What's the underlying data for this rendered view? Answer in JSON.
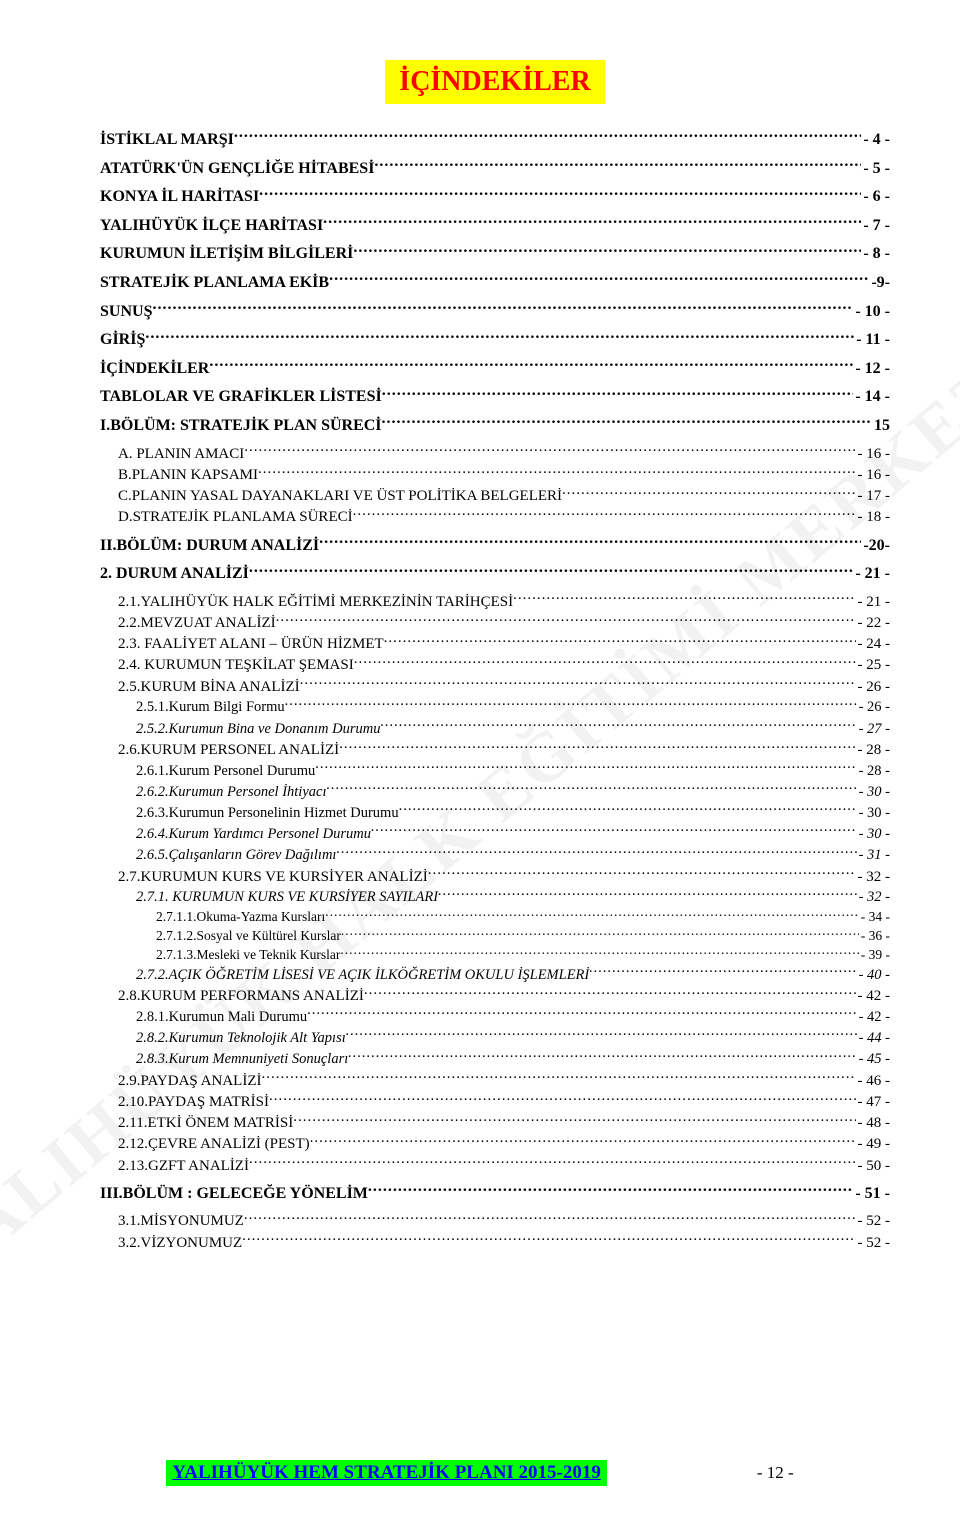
{
  "title": "İÇİNDEKİLER",
  "watermark": "YALIHÜYÜK HALK EĞİTİMİ MERKEZİ",
  "footer": {
    "title": "YALIHÜYÜK HEM STRATEJİK PLANI 2015-2019",
    "page": "- 12 -"
  },
  "entries": [
    {
      "label": "İSTİKLAL MARŞI",
      "page": "- 4 -",
      "bold": true,
      "size": "fs16",
      "indent": "",
      "spaceAfter": true
    },
    {
      "label": "ATATÜRK'ÜN GENÇLİĞE HİTABESİ",
      "page": "- 5 -",
      "bold": true,
      "size": "fs16",
      "indent": "",
      "spaceAfter": true
    },
    {
      "label": "KONYA İL HARİTASI",
      "page": "- 6 -",
      "bold": true,
      "size": "fs16",
      "indent": "",
      "spaceAfter": true
    },
    {
      "label": "YALIHÜYÜK İLÇE HARİTASI",
      "page": "- 7 -",
      "bold": true,
      "size": "fs16",
      "indent": "",
      "spaceAfter": true
    },
    {
      "label": "KURUMUN İLETİŞİM BİLGİLERİ",
      "page": "- 8 -",
      "bold": true,
      "size": "fs16",
      "indent": "",
      "spaceAfter": true
    },
    {
      "label": "STRATEJİK PLANLAMA EKİB",
      "page": "-9-",
      "bold": true,
      "size": "fs16",
      "indent": "",
      "spaceAfter": true
    },
    {
      "label": "SUNUŞ",
      "page": "- 10 -",
      "bold": true,
      "size": "fs16",
      "indent": "",
      "spaceAfter": true
    },
    {
      "label": "GİRİŞ",
      "page": "- 11 -",
      "bold": true,
      "size": "fs16",
      "indent": "",
      "spaceAfter": true
    },
    {
      "label": "İÇİNDEKİLER",
      "page": "- 12 -",
      "bold": true,
      "size": "fs16",
      "indent": "",
      "spaceAfter": true
    },
    {
      "label": "TABLOLAR VE GRAFİKLER LİSTESİ",
      "page": "- 14 -",
      "bold": true,
      "size": "fs16",
      "indent": "",
      "spaceAfter": true
    },
    {
      "label": "I.BÖLÜM: STRATEJİK PLAN SÜRECİ",
      "page": " 15",
      "bold": true,
      "size": "fs16",
      "indent": "",
      "spaceAfter": true
    },
    {
      "label": "A. PLANIN AMACI",
      "page": "- 16 -",
      "bold": false,
      "size": "fs15",
      "indent": "ind1"
    },
    {
      "label": "B.PLANIN KAPSAMI",
      "page": "- 16 -",
      "bold": false,
      "size": "fs15",
      "indent": "ind1"
    },
    {
      "label": "C.PLANIN YASAL  DAYANAKLARI VE ÜST POLİTİKA BELGELERİ",
      "page": "- 17 -",
      "bold": false,
      "size": "fs15",
      "indent": "ind1"
    },
    {
      "label": "D.STRATEJİK PLANLAMA SÜRECİ",
      "page": "- 18 -",
      "bold": false,
      "size": "fs15",
      "indent": "ind1",
      "spaceAfter": true
    },
    {
      "label": "II.BÖLÜM: DURUM ANALİZİ",
      "page": "-20-",
      "bold": true,
      "size": "fs16",
      "indent": "",
      "spaceAfter": true
    },
    {
      "label": "2. DURUM ANALİZİ",
      "page": "- 21 -",
      "bold": true,
      "size": "fs16",
      "indent": "",
      "spaceAfter": true
    },
    {
      "label": "2.1.YALIHÜYÜK HALK EĞİTİMİ MERKEZİNİN TARİHÇESİ",
      "page": "- 21 -",
      "bold": false,
      "size": "fs15",
      "indent": "ind1"
    },
    {
      "label": "2.2.MEVZUAT ANALİZİ",
      "page": "- 22 -",
      "bold": false,
      "size": "fs15",
      "indent": "ind1"
    },
    {
      "label": "2.3. FAALİYET ALANI – ÜRÜN HİZMET",
      "page": "- 24 -",
      "bold": false,
      "size": "fs15",
      "indent": "ind1"
    },
    {
      "label": "2.4. KURUMUN TEŞKİLAT ŞEMASI",
      "page": "- 25 -",
      "bold": false,
      "size": "fs15",
      "indent": "ind1"
    },
    {
      "label": "2.5.KURUM BİNA ANALİZİ",
      "page": "- 26 -",
      "bold": false,
      "size": "fs15",
      "indent": "ind1"
    },
    {
      "label": "2.5.1.Kurum Bilgi Formu",
      "page": "- 26 -",
      "bold": false,
      "size": "fs14",
      "indent": "ind2"
    },
    {
      "label": "2.5.2.Kurumun Bina ve  Donanım Durumu",
      "page": "- 27 -",
      "bold": false,
      "size": "fs14",
      "indent": "ind2",
      "italic": true
    },
    {
      "label": "2.6.KURUM PERSONEL ANALİZİ",
      "page": "- 28 -",
      "bold": false,
      "size": "fs15",
      "indent": "ind1"
    },
    {
      "label": "2.6.1.Kurum Personel Durumu",
      "page": "- 28 -",
      "bold": false,
      "size": "fs14",
      "indent": "ind2"
    },
    {
      "label": "2.6.2.Kurumun Personel İhtiyacı",
      "page": "- 30 -",
      "bold": false,
      "size": "fs14",
      "indent": "ind2",
      "italic": true
    },
    {
      "label": "2.6.3.Kurumun Personelinin Hizmet Durumu",
      "page": "- 30 -",
      "bold": false,
      "size": "fs14",
      "indent": "ind2"
    },
    {
      "label": "2.6.4.Kurum Yardımcı Personel Durumu",
      "page": "- 30 -",
      "bold": false,
      "size": "fs14",
      "indent": "ind2",
      "italic": true
    },
    {
      "label": "2.6.5.Çalışanların Görev Dağılımı",
      "page": "- 31 -",
      "bold": false,
      "size": "fs14",
      "indent": "ind2",
      "italic": true
    },
    {
      "label": "2.7.KURUMUN KURS VE KURSİYER ANALİZİ",
      "page": "- 32 -",
      "bold": false,
      "size": "fs15",
      "indent": "ind1"
    },
    {
      "label": "2.7.1. KURUMUN KURS VE KURSİYER SAYILARI",
      "page": "- 32 -",
      "bold": false,
      "size": "fs14",
      "indent": "ind2",
      "italic": true
    },
    {
      "label": "2.7.1.1.Okuma-Yazma Kursları",
      "page": "- 34 -",
      "bold": false,
      "size": "fs13",
      "indent": "ind3"
    },
    {
      "label": "2.7.1.2.Sosyal ve Kültürel Kurslar",
      "page": "- 36 -",
      "bold": false,
      "size": "fs13",
      "indent": "ind3"
    },
    {
      "label": "2.7.1.3.Mesleki ve Teknik Kurslar",
      "page": "- 39 -",
      "bold": false,
      "size": "fs13",
      "indent": "ind3"
    },
    {
      "label": "2.7.2.AÇIK ÖĞRETİM LİSESİ VE AÇIK İLKÖĞRETİM OKULU İŞLEMLERİ",
      "page": "- 40 -",
      "bold": false,
      "size": "fs14",
      "indent": "ind2",
      "italic": true
    },
    {
      "label": "2.8.KURUM PERFORMANS ANALİZİ",
      "page": "- 42 -",
      "bold": false,
      "size": "fs15",
      "indent": "ind1"
    },
    {
      "label": "2.8.1.Kurumun Mali Durumu",
      "page": "- 42 -",
      "bold": false,
      "size": "fs14",
      "indent": "ind2"
    },
    {
      "label": "2.8.2.Kurumun Teknolojik Alt Yapısı",
      "page": "- 44 -",
      "bold": false,
      "size": "fs14",
      "indent": "ind2",
      "italic": true
    },
    {
      "label": "2.8.3.Kurum Memnuniyeti Sonuçları",
      "page": "- 45 -",
      "bold": false,
      "size": "fs14",
      "indent": "ind2",
      "italic": true
    },
    {
      "label": "2.9.PAYDAŞ ANALİZİ",
      "page": "- 46 -",
      "bold": false,
      "size": "fs15",
      "indent": "ind1"
    },
    {
      "label": "2.10.PAYDAŞ MATRİSİ",
      "page": "- 47 -",
      "bold": false,
      "size": "fs15",
      "indent": "ind1"
    },
    {
      "label": "2.11.ETKİ ÖNEM MATRİSİ",
      "page": "- 48 -",
      "bold": false,
      "size": "fs15",
      "indent": "ind1"
    },
    {
      "label": "2.12.ÇEVRE ANALİZİ (PEST)",
      "page": "- 49 -",
      "bold": false,
      "size": "fs15",
      "indent": "ind1"
    },
    {
      "label": "2.13.GZFT ANALİZİ",
      "page": "- 50 -",
      "bold": false,
      "size": "fs15",
      "indent": "ind1",
      "spaceAfter": true
    },
    {
      "label": "III.BÖLÜM : GELECEĞE YÖNELİM",
      "page": "- 51 -",
      "bold": true,
      "size": "fs16",
      "indent": "",
      "spaceAfter": true
    },
    {
      "label": "3.1.MİSYONUMUZ",
      "page": "- 52 -",
      "bold": false,
      "size": "fs15",
      "indent": "ind1"
    },
    {
      "label": "3.2.VİZYONUMUZ",
      "page": "- 52 -",
      "bold": false,
      "size": "fs15",
      "indent": "ind1"
    }
  ]
}
